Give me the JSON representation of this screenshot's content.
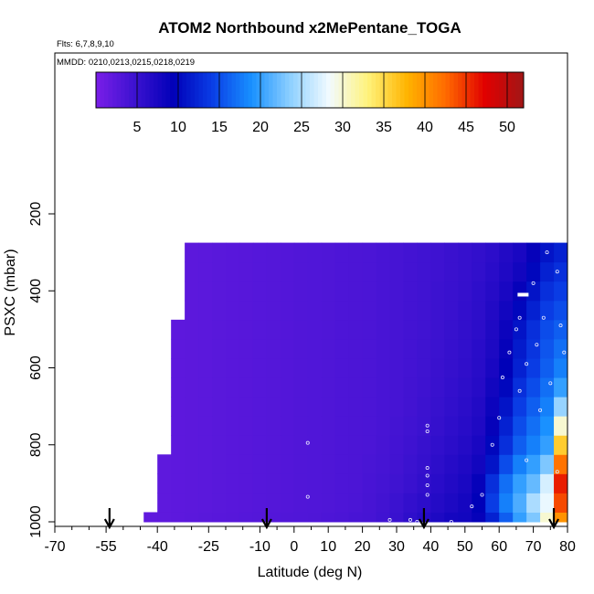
{
  "chart_data": {
    "type": "heatmap",
    "title": "ATOM2 Northbound x2MePentane_TOGA",
    "flights_label": "Flts: 6,7,8,9,10",
    "dates_label": "MMDD: 0210,0213,0215,0218,0219",
    "xlabel": "Latitude (deg N)",
    "ylabel": "PSXC (mbar)",
    "xlim": [
      -70,
      80
    ],
    "ylim": [
      1000,
      200
    ],
    "x_ticks": [
      -70,
      -55,
      -40,
      -25,
      -10,
      0,
      10,
      20,
      30,
      40,
      50,
      60,
      70,
      80
    ],
    "x_minor_ticks": [
      -65,
      -60,
      -50,
      -45,
      -35,
      -30,
      -20,
      -15,
      -5,
      5,
      15,
      25,
      35,
      45,
      55,
      65,
      75
    ],
    "y_ticks": [
      200,
      400,
      600,
      800,
      1000
    ],
    "colorbar": {
      "min": 0,
      "max": 52,
      "ticks": [
        5,
        10,
        15,
        20,
        25,
        30,
        35,
        40,
        45,
        50
      ],
      "colors": [
        "#7a1ee8",
        "#3c12d0",
        "#0000b8",
        "#0a3ee6",
        "#1890ff",
        "#8ed0ff",
        "#f2fbff",
        "#fff27a",
        "#ffb400",
        "#ff6a00",
        "#e10000",
        "#a11616"
      ]
    },
    "latitude_edges": [
      -44,
      -40,
      -36,
      -32,
      -28,
      -24,
      -20,
      -16,
      -12,
      -8,
      -4,
      0,
      4,
      8,
      12,
      16,
      20,
      24,
      28,
      32,
      36,
      40,
      44,
      48,
      52,
      56,
      60,
      64,
      68,
      72,
      76,
      80
    ],
    "pressure_levels": [
      1000,
      950,
      900,
      850,
      800,
      750,
      700,
      650,
      600,
      550,
      500,
      450,
      400,
      350,
      300
    ],
    "top_boundary_pressure": [
      1000,
      850,
      480,
      300,
      300,
      300,
      300,
      300,
      300,
      300,
      300,
      300,
      300,
      300,
      300,
      300,
      300,
      300,
      300,
      300,
      300,
      300,
      300,
      300,
      300,
      300,
      300,
      300,
      300,
      300,
      300
    ],
    "values": [
      [
        2.0,
        2.1,
        2.2,
        2.4,
        2.5,
        2.6,
        2.7,
        2.8,
        2.9,
        3.0,
        3.1,
        3.2,
        3.3,
        3.4,
        3.6,
        3.8,
        4.0,
        4.4,
        5.0,
        5.8,
        6.5,
        7.2,
        7.8,
        8.0,
        9.0,
        12.0,
        16.0,
        20.0,
        23.0,
        30.0,
        40.0
      ],
      [
        2.0,
        2.1,
        2.2,
        2.3,
        2.4,
        2.5,
        2.6,
        2.7,
        2.8,
        2.9,
        3.0,
        3.1,
        3.2,
        3.3,
        3.4,
        3.6,
        3.9,
        4.3,
        4.8,
        5.4,
        6.0,
        6.6,
        7.2,
        7.8,
        9.5,
        14.0,
        18.0,
        21.0,
        25.0,
        28.0,
        44.0
      ],
      [
        2.0,
        2.1,
        2.2,
        2.3,
        2.4,
        2.5,
        2.6,
        2.7,
        2.8,
        2.9,
        3.0,
        3.1,
        3.2,
        3.3,
        3.4,
        3.5,
        3.8,
        4.1,
        4.5,
        5.0,
        5.6,
        6.2,
        6.8,
        7.4,
        9.0,
        13.0,
        17.0,
        20.0,
        22.0,
        27.0,
        46.0
      ],
      [
        2.0,
        2.1,
        2.2,
        2.3,
        2.4,
        2.5,
        2.6,
        2.7,
        2.8,
        2.9,
        3.0,
        3.1,
        3.2,
        3.3,
        3.4,
        3.5,
        3.7,
        4.0,
        4.3,
        4.8,
        5.3,
        5.9,
        6.5,
        7.0,
        8.0,
        11.0,
        15.0,
        18.0,
        20.0,
        23.0,
        42.0
      ],
      [
        2.0,
        2.1,
        2.2,
        2.3,
        2.4,
        2.5,
        2.6,
        2.7,
        2.8,
        2.9,
        3.0,
        3.1,
        3.2,
        3.3,
        3.4,
        3.5,
        3.6,
        3.9,
        4.2,
        4.6,
        5.1,
        5.6,
        6.1,
        6.6,
        7.5,
        10.0,
        13.0,
        16.0,
        18.0,
        20.0,
        36.0
      ],
      [
        2.0,
        2.1,
        2.2,
        2.3,
        2.4,
        2.5,
        2.6,
        2.7,
        2.8,
        2.9,
        3.0,
        3.1,
        3.2,
        3.3,
        3.4,
        3.5,
        3.6,
        3.8,
        4.1,
        4.4,
        4.8,
        5.3,
        5.8,
        6.3,
        7.0,
        9.0,
        12.0,
        15.0,
        17.0,
        19.0,
        30.0
      ],
      [
        2.0,
        2.1,
        2.2,
        2.3,
        2.4,
        2.5,
        2.6,
        2.7,
        2.8,
        2.9,
        3.0,
        3.1,
        3.2,
        3.3,
        3.4,
        3.5,
        3.6,
        3.8,
        4.0,
        4.3,
        4.7,
        5.1,
        5.6,
        6.1,
        6.8,
        8.5,
        11.0,
        14.0,
        16.0,
        18.0,
        24.0
      ],
      [
        2.0,
        2.1,
        2.2,
        2.3,
        2.4,
        2.5,
        2.6,
        2.7,
        2.8,
        2.9,
        3.0,
        3.1,
        3.2,
        3.3,
        3.4,
        3.5,
        3.6,
        3.8,
        4.0,
        4.3,
        4.6,
        5.0,
        5.4,
        5.9,
        6.5,
        8.0,
        10.0,
        13.0,
        15.0,
        17.0,
        20.0
      ],
      [
        2.0,
        2.1,
        2.2,
        2.3,
        2.4,
        2.5,
        2.6,
        2.7,
        2.8,
        2.9,
        3.0,
        3.1,
        3.2,
        3.3,
        3.4,
        3.5,
        3.6,
        3.8,
        4.0,
        4.2,
        4.5,
        4.9,
        5.3,
        5.7,
        6.3,
        7.5,
        9.5,
        12.0,
        14.0,
        16.0,
        18.0
      ],
      [
        2.0,
        2.1,
        2.2,
        2.3,
        2.4,
        2.5,
        2.6,
        2.7,
        2.8,
        2.9,
        3.0,
        3.1,
        3.2,
        3.3,
        3.4,
        3.5,
        3.6,
        3.8,
        4.0,
        4.2,
        4.5,
        4.8,
        5.2,
        5.6,
        6.2,
        7.2,
        9.0,
        11.5,
        13.5,
        15.5,
        17.0
      ],
      [
        2.0,
        2.1,
        2.2,
        2.3,
        2.4,
        2.5,
        2.6,
        2.7,
        2.8,
        2.9,
        3.0,
        3.1,
        3.2,
        3.3,
        3.4,
        3.5,
        3.6,
        3.8,
        4.0,
        4.2,
        4.4,
        4.7,
        5.1,
        5.5,
        6.0,
        7.0,
        8.5,
        11.0,
        13.0,
        15.0,
        16.0
      ],
      [
        2.0,
        2.1,
        2.2,
        2.3,
        2.4,
        2.5,
        2.6,
        2.7,
        2.8,
        2.9,
        3.0,
        3.1,
        3.2,
        3.3,
        3.4,
        3.5,
        3.6,
        3.8,
        4.0,
        4.2,
        4.4,
        4.7,
        5.0,
        5.4,
        5.9,
        6.8,
        8.0,
        10.0,
        12.0,
        14.0,
        15.0
      ],
      [
        2.0,
        2.1,
        2.2,
        2.3,
        2.4,
        2.5,
        2.6,
        2.7,
        2.8,
        2.9,
        3.0,
        3.1,
        3.2,
        3.3,
        3.4,
        3.5,
        3.6,
        3.8,
        4.0,
        4.2,
        4.4,
        4.7,
        5.0,
        5.3,
        5.8,
        6.5,
        7.5,
        9.0,
        11.0,
        13.0,
        14.0
      ],
      [
        2.0,
        2.1,
        2.2,
        2.3,
        2.4,
        2.5,
        2.6,
        2.7,
        2.8,
        2.9,
        3.0,
        3.1,
        3.2,
        3.3,
        3.4,
        3.5,
        3.6,
        3.8,
        4.0,
        4.2,
        4.4,
        4.6,
        4.9,
        5.2,
        5.6,
        6.2,
        7.0,
        8.0,
        10.0,
        12.0,
        13.0
      ],
      [
        2.0,
        2.1,
        2.2,
        2.3,
        2.4,
        2.5,
        2.6,
        2.7,
        2.8,
        2.9,
        3.0,
        3.1,
        3.2,
        3.3,
        3.4,
        3.5,
        3.6,
        3.8,
        4.0,
        4.2,
        4.4,
        4.6,
        4.9,
        5.2,
        5.5,
        6.0,
        6.8,
        7.5,
        9.0,
        11.0,
        12.0
      ]
    ],
    "sample_points": [
      {
        "lat": 4,
        "p": 795
      },
      {
        "lat": 4,
        "p": 935
      },
      {
        "lat": 28,
        "p": 995
      },
      {
        "lat": 34,
        "p": 995
      },
      {
        "lat": 36,
        "p": 1000
      },
      {
        "lat": 39,
        "p": 750
      },
      {
        "lat": 39,
        "p": 765
      },
      {
        "lat": 39,
        "p": 860
      },
      {
        "lat": 39,
        "p": 880
      },
      {
        "lat": 39,
        "p": 905
      },
      {
        "lat": 39,
        "p": 930
      },
      {
        "lat": 46,
        "p": 1000
      },
      {
        "lat": 52,
        "p": 960
      },
      {
        "lat": 55,
        "p": 930
      },
      {
        "lat": 58,
        "p": 800
      },
      {
        "lat": 60,
        "p": 730
      },
      {
        "lat": 61,
        "p": 625
      },
      {
        "lat": 63,
        "p": 560
      },
      {
        "lat": 65,
        "p": 500
      },
      {
        "lat": 66,
        "p": 470
      },
      {
        "lat": 66,
        "p": 660
      },
      {
        "lat": 68,
        "p": 590
      },
      {
        "lat": 68,
        "p": 840
      },
      {
        "lat": 70,
        "p": 380
      },
      {
        "lat": 71,
        "p": 540
      },
      {
        "lat": 72,
        "p": 710
      },
      {
        "lat": 73,
        "p": 470
      },
      {
        "lat": 74,
        "p": 300
      },
      {
        "lat": 75,
        "p": 640
      },
      {
        "lat": 77,
        "p": 350
      },
      {
        "lat": 77,
        "p": 870
      },
      {
        "lat": 78,
        "p": 490
      },
      {
        "lat": 79,
        "p": 560
      }
    ],
    "flight_marker_latitudes": [
      -54,
      -8,
      38,
      76
    ],
    "segment_markers": [
      {
        "lat": -36,
        "p": 225
      },
      {
        "lat": 67,
        "p": 410
      }
    ]
  }
}
